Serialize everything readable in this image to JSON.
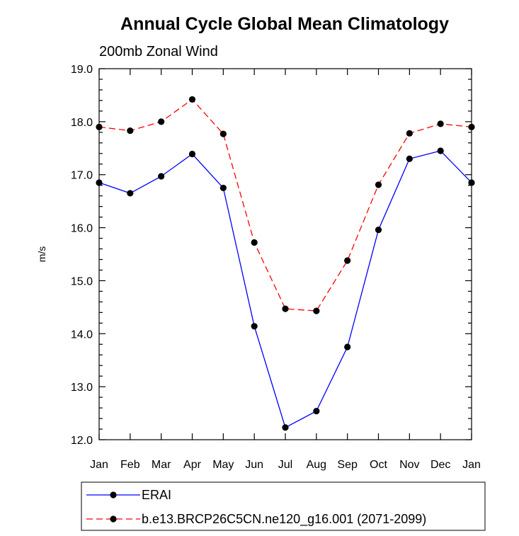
{
  "chart_data": {
    "type": "line",
    "title": "Annual Cycle Global Mean Climatology",
    "subtitle": "200mb Zonal Wind",
    "xlabel": "",
    "ylabel": "m/s",
    "categories": [
      "Jan",
      "Feb",
      "Mar",
      "Apr",
      "May",
      "Jun",
      "Jul",
      "Aug",
      "Sep",
      "Oct",
      "Nov",
      "Dec",
      "Jan"
    ],
    "ylim": [
      12.0,
      19.0
    ],
    "yticks": [
      "12.0",
      "13.0",
      "14.0",
      "15.0",
      "16.0",
      "17.0",
      "18.0",
      "19.0"
    ],
    "grid": false,
    "legend_position": "bottom",
    "series": [
      {
        "name": "ERAI",
        "color": "#0000ff",
        "dash": "solid",
        "values": [
          16.85,
          16.65,
          16.97,
          17.39,
          16.75,
          14.14,
          12.23,
          12.54,
          13.75,
          15.96,
          17.3,
          17.45,
          16.85
        ]
      },
      {
        "name": "b.e13.BRCP26C5CN.ne120_g16.001 (2071-2099)",
        "color": "#ff0000",
        "dash": "dashed",
        "values": [
          17.9,
          17.83,
          18.0,
          18.42,
          17.77,
          15.72,
          14.47,
          14.43,
          15.38,
          16.81,
          17.78,
          17.96,
          17.9
        ]
      }
    ]
  }
}
